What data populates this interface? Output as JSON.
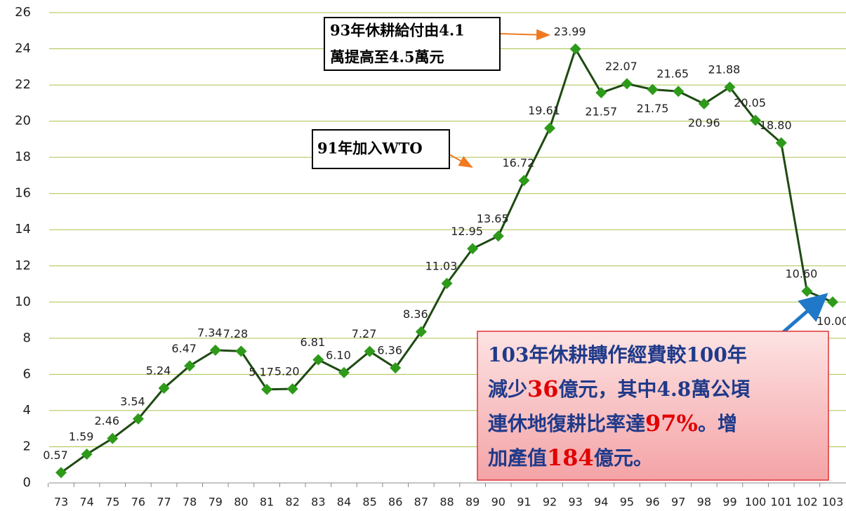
{
  "chart_data": {
    "type": "line",
    "categories": [
      "73",
      "74",
      "75",
      "76",
      "77",
      "78",
      "79",
      "80",
      "81",
      "82",
      "83",
      "84",
      "85",
      "86",
      "87",
      "88",
      "89",
      "90",
      "91",
      "92",
      "93",
      "94",
      "95",
      "96",
      "97",
      "98",
      "99",
      "100",
      "101",
      "102",
      "103"
    ],
    "series": [
      {
        "name": null,
        "color": "#1e4a12",
        "marker_color": "#2e9a1a",
        "values": [
          0.57,
          1.59,
          2.46,
          3.54,
          5.24,
          6.47,
          7.34,
          7.28,
          5.17,
          5.2,
          6.81,
          6.1,
          7.27,
          6.36,
          8.36,
          11.03,
          12.95,
          13.65,
          16.72,
          19.61,
          23.99,
          21.57,
          22.07,
          21.75,
          21.65,
          20.96,
          21.88,
          20.05,
          18.8,
          10.6,
          10.0
        ],
        "value_labels": [
          "0.57",
          "1.59",
          "2.46",
          "3.54",
          "5.24",
          "6.47",
          "7.34",
          "7.28",
          "5.17",
          "5.20",
          "6.81",
          "6.10",
          "7.27",
          "6.36",
          "8.36",
          "11.03",
          "12.95",
          "13.65",
          "16.72",
          "19.61",
          "23.99",
          "21.57",
          "22.07",
          "21.75",
          "21.65",
          "20.96",
          "21.88",
          "20.05",
          "18.80",
          "10.60",
          "10.00"
        ]
      }
    ],
    "ylim": [
      0,
      26
    ],
    "yticks": [
      0,
      2,
      4,
      6,
      8,
      10,
      12,
      14,
      16,
      18,
      20,
      22,
      24,
      26
    ],
    "grid": true,
    "grid_color": "#a8c34a",
    "annotations": [
      {
        "lines": [
          "93年休耕給付由4.1",
          "萬提高至4.5萬元"
        ]
      },
      {
        "lines": [
          "91年加入WTO"
        ]
      },
      {
        "lines": [
          [
            {
              "text": "103年休耕轉作經費較100年"
            }
          ],
          [
            {
              "text": "減少"
            },
            {
              "text": "36",
              "color": "#e00000"
            },
            {
              "text": "億元，其中4.8萬公頃"
            }
          ],
          [
            {
              "text": "連休地復耕比率達"
            },
            {
              "text": "97%",
              "color": "#e00000"
            },
            {
              "text": "。增"
            }
          ],
          [
            {
              "text": "加產值"
            },
            {
              "text": "184",
              "color": "#e00000"
            },
            {
              "text": "億元。"
            }
          ]
        ]
      }
    ]
  }
}
